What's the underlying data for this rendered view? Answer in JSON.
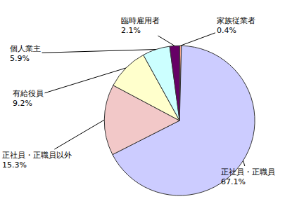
{
  "chart_data": {
    "type": "pie",
    "categories": [
      "家族従業者",
      "正社員・正職員",
      "正社員・正職員以外",
      "有給役員",
      "個人業主",
      "臨時雇用者"
    ],
    "values": [
      0.4,
      67.1,
      15.3,
      9.2,
      5.9,
      2.1
    ],
    "value_labels": [
      "0.4%",
      "67.1%",
      "15.3%",
      "9.2%",
      "5.9%",
      "2.1%"
    ],
    "colors": [
      "#f4a98a",
      "#ccccff",
      "#f2c8c8",
      "#ffffcc",
      "#ccffff",
      "#660066"
    ],
    "data_labels": true
  }
}
